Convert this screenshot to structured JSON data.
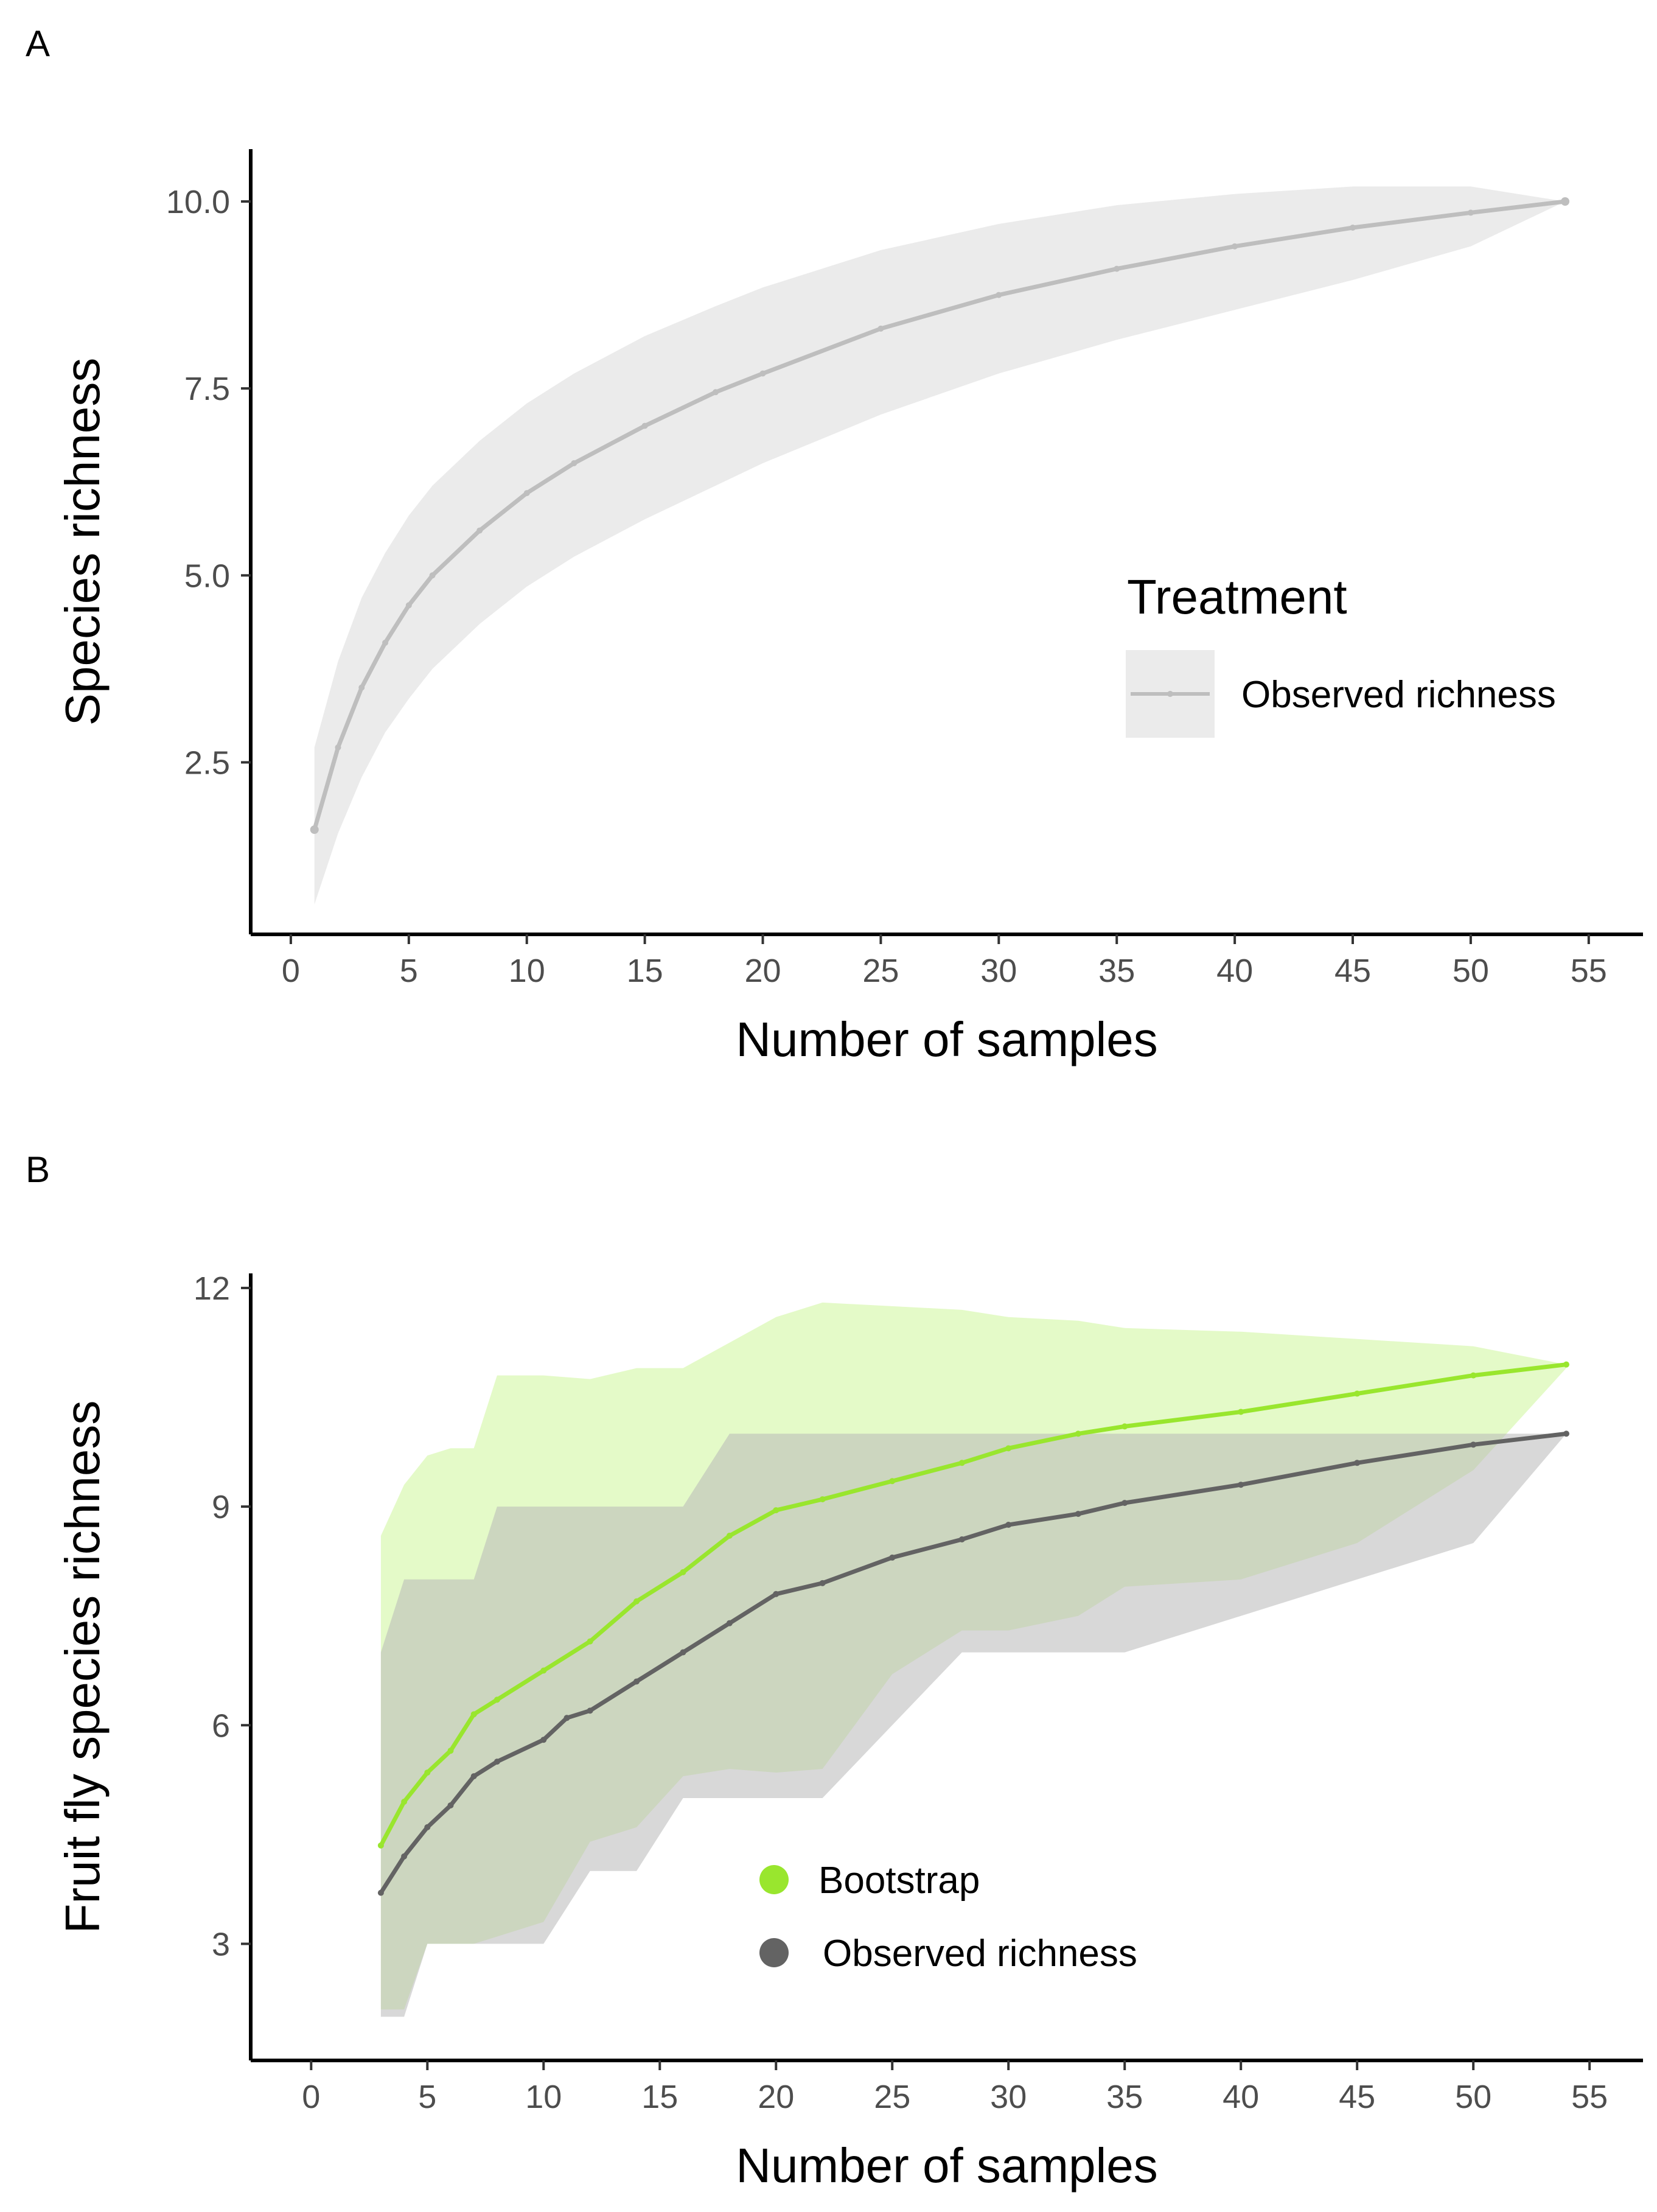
{
  "chart_data": [
    {
      "panel": "A",
      "type": "line",
      "xlabel": "Number of samples",
      "ylabel": "Species richness",
      "xlim": [
        -1.7,
        57.3
      ],
      "ylim": [
        0.2,
        10.7
      ],
      "xticks": [
        0,
        5,
        10,
        15,
        20,
        25,
        30,
        35,
        40,
        45,
        50,
        55
      ],
      "yticks": [
        2.5,
        5.0,
        7.5,
        10.0
      ],
      "ytick_labels": [
        "2.5",
        "5.0",
        "7.5",
        "10.0"
      ],
      "grid": false,
      "legend": {
        "title": "Treatment",
        "position": "right-middle",
        "entries": [
          "Observed richness"
        ]
      },
      "colors": {
        "line": "#bebebe",
        "ribbon": "#ebebeb"
      },
      "series": [
        {
          "name": "Observed richness",
          "x": [
            1,
            2,
            3,
            4,
            5,
            6,
            8,
            10,
            12,
            15,
            18,
            20,
            25,
            30,
            35,
            40,
            45,
            50,
            54
          ],
          "y": [
            1.6,
            2.7,
            3.5,
            4.1,
            4.6,
            5.0,
            5.6,
            6.1,
            6.5,
            7.0,
            7.45,
            7.7,
            8.3,
            8.75,
            9.1,
            9.4,
            9.65,
            9.85,
            10.0
          ],
          "lower": [
            0.6,
            1.55,
            2.3,
            2.9,
            3.35,
            3.75,
            4.35,
            4.85,
            5.25,
            5.75,
            6.2,
            6.5,
            7.15,
            7.7,
            8.15,
            8.55,
            8.95,
            9.4,
            10.0
          ],
          "upper": [
            2.7,
            3.85,
            4.7,
            5.3,
            5.8,
            6.2,
            6.8,
            7.3,
            7.7,
            8.2,
            8.6,
            8.85,
            9.35,
            9.7,
            9.95,
            10.1,
            10.2,
            10.2,
            10.0
          ]
        }
      ]
    },
    {
      "panel": "B",
      "type": "line",
      "xlabel": "Number of samples",
      "ylabel": "Fruit fly species richness",
      "xlim": [
        -2.6,
        57.3
      ],
      "ylim": [
        1.4,
        12.2
      ],
      "xticks": [
        0,
        5,
        10,
        15,
        20,
        25,
        30,
        35,
        40,
        45,
        50,
        55
      ],
      "yticks": [
        3,
        6,
        9,
        12
      ],
      "ytick_labels": [
        "3",
        "6",
        "9",
        "12"
      ],
      "grid": false,
      "legend": {
        "position": "bottom-center",
        "entries": [
          "Bootstrap",
          "Observed richness"
        ]
      },
      "colors": {
        "bootstrap": "#99e62e",
        "bootstrap_ribbon": "#c3f584",
        "observed": "#636363",
        "observed_ribbon": "#b8b8b8"
      },
      "series": [
        {
          "name": "Bootstrap",
          "x": [
            3,
            4,
            5,
            6,
            7,
            8,
            10,
            12,
            14,
            16,
            18,
            20,
            22,
            25,
            28,
            30,
            33,
            35,
            40,
            45,
            50,
            54
          ],
          "y": [
            4.35,
            4.95,
            5.35,
            5.65,
            6.15,
            6.35,
            6.75,
            7.15,
            7.7,
            8.1,
            8.6,
            8.95,
            9.1,
            9.35,
            9.6,
            9.8,
            10.0,
            10.1,
            10.3,
            10.55,
            10.8,
            10.95
          ],
          "lower": [
            2.1,
            2.1,
            3.0,
            3.0,
            3.0,
            3.1,
            3.3,
            4.4,
            4.6,
            5.3,
            5.4,
            5.35,
            5.4,
            6.7,
            7.3,
            7.3,
            7.5,
            7.9,
            8.0,
            8.5,
            9.5,
            10.9
          ],
          "upper": [
            8.6,
            9.3,
            9.7,
            9.8,
            9.8,
            10.8,
            10.8,
            10.75,
            10.9,
            10.9,
            11.25,
            11.6,
            11.8,
            11.75,
            11.7,
            11.6,
            11.55,
            11.45,
            11.4,
            11.3,
            11.2,
            10.95
          ]
        },
        {
          "name": "Observed richness",
          "x": [
            3,
            4,
            5,
            6,
            7,
            8,
            10,
            11,
            12,
            14,
            16,
            18,
            20,
            22,
            25,
            28,
            30,
            33,
            35,
            40,
            45,
            50,
            54
          ],
          "y": [
            3.7,
            4.2,
            4.6,
            4.9,
            5.3,
            5.5,
            5.8,
            6.1,
            6.2,
            6.6,
            7.0,
            7.4,
            7.8,
            7.95,
            8.3,
            8.55,
            8.75,
            8.9,
            9.05,
            9.3,
            9.6,
            9.85,
            10.0
          ],
          "lower": [
            2.0,
            2.0,
            3.0,
            3.0,
            3.0,
            3.0,
            3.0,
            3.5,
            4.0,
            4.0,
            5.0,
            5.0,
            5.0,
            5.0,
            6.0,
            7.0,
            7.0,
            7.0,
            7.0,
            7.5,
            8.0,
            8.5,
            10.0
          ],
          "upper": [
            7.0,
            8.0,
            8.0,
            8.0,
            8.0,
            9.0,
            9.0,
            9.0,
            9.0,
            9.0,
            9.0,
            10.0,
            10.0,
            10.0,
            10.0,
            10.0,
            10.0,
            10.0,
            10.0,
            10.0,
            10.0,
            10.0,
            10.0
          ]
        }
      ]
    }
  ],
  "panel_labels": [
    "A",
    "B"
  ]
}
